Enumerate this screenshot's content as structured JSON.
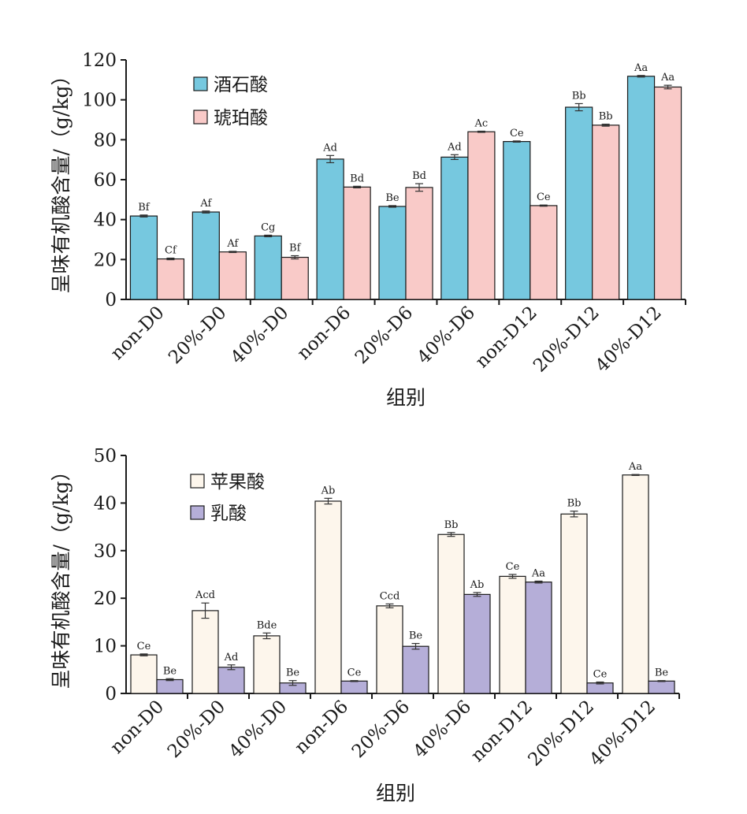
{
  "chart_data": [
    {
      "type": "bar",
      "categories": [
        "non-D0",
        "20%-D0",
        "40%-D0",
        "non-D6",
        "20%-D6",
        "40%-D6",
        "non-D12",
        "20%-D12",
        "40%-D12"
      ],
      "xlabel": "组别",
      "ylabel": "呈味有机酸含量/（g/kg）",
      "ylim": [
        0,
        120
      ],
      "yticks": [
        0,
        20,
        40,
        60,
        80,
        100,
        120
      ],
      "legend_position": "top-left",
      "series": [
        {
          "name": "酒石酸",
          "color": "#76c8df",
          "values": [
            41.8,
            43.8,
            31.8,
            70.3,
            46.6,
            71.3,
            79.1,
            96.3,
            111.8
          ],
          "errors": [
            0.5,
            0.5,
            0.4,
            1.8,
            0.4,
            1.2,
            0.3,
            1.8,
            0.4
          ],
          "labels": [
            "Bf",
            "Af",
            "Cg",
            "Ad",
            "Be",
            "Ad",
            "Ce",
            "Bb",
            "Aa"
          ]
        },
        {
          "name": "琥珀酸",
          "color": "#f9cac8",
          "values": [
            20.3,
            23.8,
            21.1,
            56.3,
            56.1,
            84.0,
            47.0,
            87.3,
            106.4
          ],
          "errors": [
            0.4,
            0.3,
            0.8,
            0.4,
            1.9,
            0.3,
            0.3,
            0.5,
            0.9
          ],
          "labels": [
            "Cf",
            "Af",
            "Bf",
            "Bd",
            "Bd",
            "Ac",
            "Ce",
            "Bb",
            "Aa"
          ]
        }
      ]
    },
    {
      "type": "bar",
      "categories": [
        "non-D0",
        "20%-D0",
        "40%-D0",
        "non-D6",
        "20%-D6",
        "40%-D6",
        "non-D12",
        "20%-D12",
        "40%-D12"
      ],
      "xlabel": "组别",
      "ylabel": "呈味有机酸含量/（g/kg）",
      "ylim": [
        0,
        50
      ],
      "yticks": [
        0,
        10,
        20,
        30,
        40,
        50
      ],
      "legend_position": "top-left",
      "series": [
        {
          "name": "苹果酸",
          "color": "#fdf6ec",
          "values": [
            8.1,
            17.4,
            12.1,
            40.4,
            18.4,
            33.4,
            24.6,
            37.7,
            45.9
          ],
          "errors": [
            0.2,
            1.6,
            0.6,
            0.6,
            0.4,
            0.4,
            0.4,
            0.6,
            0.1
          ],
          "labels": [
            "Ce",
            "Acd",
            "Bde",
            "Ab",
            "Ccd",
            "Bb",
            "Ce",
            "Bb",
            "Aa"
          ]
        },
        {
          "name": "乳酸",
          "color": "#b5aed8",
          "values": [
            2.9,
            5.5,
            2.2,
            2.6,
            9.9,
            20.8,
            23.4,
            2.2,
            2.6
          ],
          "errors": [
            0.2,
            0.5,
            0.5,
            0.1,
            0.6,
            0.4,
            0.2,
            0.2,
            0.1
          ],
          "labels": [
            "Be",
            "Ad",
            "Be",
            "Ce",
            "Be",
            "Ab",
            "Aa",
            "Ce",
            "Be"
          ]
        }
      ]
    }
  ]
}
